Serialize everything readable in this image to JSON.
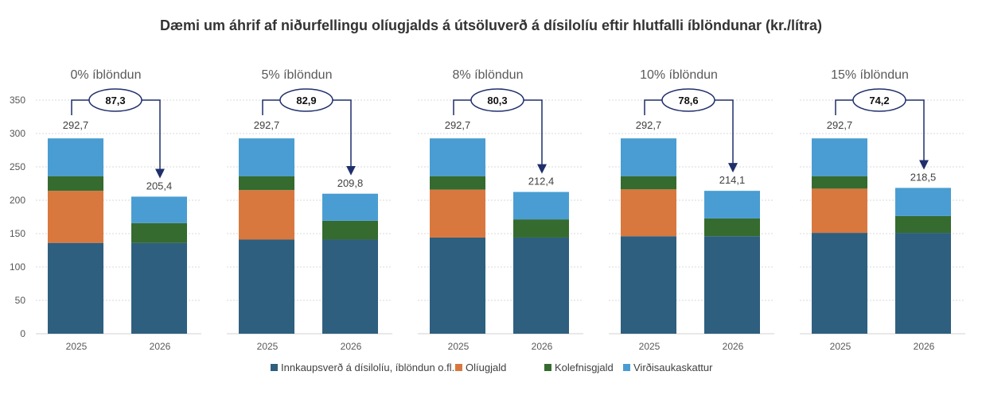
{
  "chart_data": {
    "type": "bar",
    "stacked": true,
    "title": "Dæmi um áhrif af niðurfellingu olíugjalds á útsöluverð á dísilolíu eftir hlutfalli íblöndunar (kr./lítra)",
    "ylim": [
      0,
      350
    ],
    "yticks": [
      0,
      50,
      100,
      150,
      200,
      250,
      300,
      350
    ],
    "grid": true,
    "legend_position": "bottom",
    "categories": [
      "2025",
      "2026"
    ],
    "series_names": [
      "Innkaupsverð á dísilolíu, íblöndun o.fl.",
      "Olíugjald",
      "Kolefnisgjald",
      "Virðisaukaskattur"
    ],
    "colors": [
      "#2e5f7f",
      "#d8783f",
      "#356b2f",
      "#4a9dd2"
    ],
    "panels": [
      {
        "label": "0% íblöndun",
        "reduction": "87,3",
        "totals": [
          "292,7",
          "205,4"
        ],
        "values": [
          [
            136.1,
            78.0,
            22.0,
            56.6
          ],
          [
            136.1,
            0,
            29.7,
            39.6
          ]
        ]
      },
      {
        "label": "5% íblöndun",
        "reduction": "82,9",
        "totals": [
          "292,7",
          "209,8"
        ],
        "values": [
          [
            141.1,
            74.1,
            20.9,
            56.6
          ],
          [
            141.1,
            0,
            28.1,
            40.6
          ]
        ]
      },
      {
        "label": "8% íblöndun",
        "reduction": "80,3",
        "totals": [
          "292,7",
          "212,4"
        ],
        "values": [
          [
            144.1,
            71.8,
            20.2,
            56.6
          ],
          [
            144.1,
            0,
            27.2,
            41.1
          ]
        ]
      },
      {
        "label": "10% íblöndun",
        "reduction": "78,6",
        "totals": [
          "292,7",
          "214,1"
        ],
        "values": [
          [
            146.1,
            70.2,
            19.8,
            56.6
          ],
          [
            146.1,
            0,
            26.6,
            41.4
          ]
        ]
      },
      {
        "label": "15% íblöndun",
        "reduction": "74,2",
        "totals": [
          "292,7",
          "218,5"
        ],
        "values": [
          [
            151.1,
            66.3,
            18.7,
            56.6
          ],
          [
            151.1,
            0,
            25.2,
            42.2
          ]
        ]
      }
    ]
  }
}
